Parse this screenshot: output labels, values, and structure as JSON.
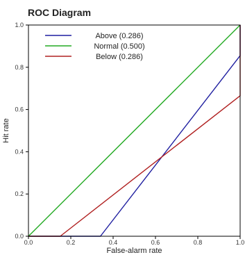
{
  "chart_data": {
    "type": "line",
    "title": "ROC Diagram",
    "xlabel": "False-alarm rate",
    "ylabel": "Hit rate",
    "xlim": [
      0,
      1
    ],
    "ylim": [
      0,
      1
    ],
    "xticks": [
      "0.0",
      "0.2",
      "0.4",
      "0.6",
      "0.8",
      "1.0"
    ],
    "yticks": [
      "0.0",
      "0.2",
      "0.4",
      "0.6",
      "0.8",
      "1.0"
    ],
    "grid": false,
    "legend_position": "top-left",
    "series": [
      {
        "name": "Above (0.286)",
        "color": "#1f1fa0",
        "x": [
          0,
          0.34,
          1,
          1
        ],
        "y": [
          0,
          0,
          0.855,
          1
        ]
      },
      {
        "name": "Normal (0.500)",
        "color": "#22aa22",
        "x": [
          0,
          1
        ],
        "y": [
          0,
          1
        ]
      },
      {
        "name": "Below (0.286)",
        "color": "#b02020",
        "x": [
          0,
          0.15,
          1,
          1
        ],
        "y": [
          0,
          0,
          0.665,
          1
        ]
      }
    ]
  }
}
